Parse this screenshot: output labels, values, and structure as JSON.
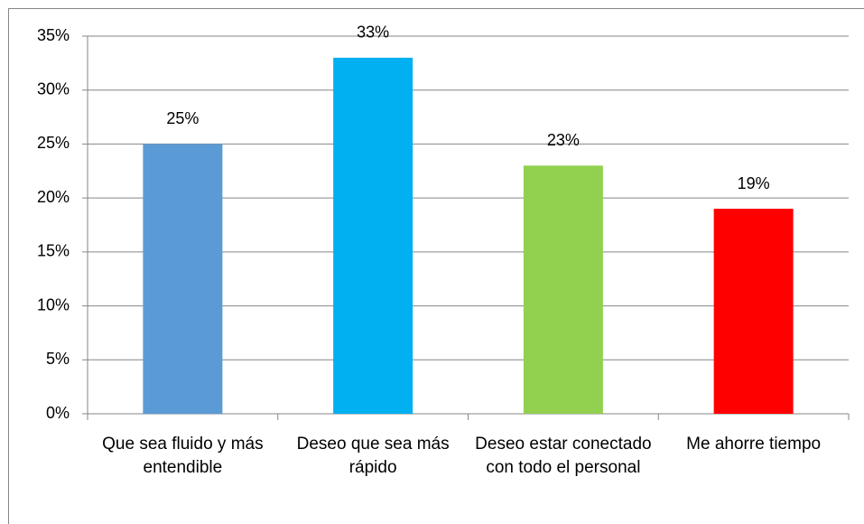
{
  "chart_data": {
    "type": "bar",
    "categories": [
      "Que sea fluido y más entendible",
      "Deseo que sea más rápido",
      "Deseo estar conectado con todo el personal",
      "Me ahorre tiempo"
    ],
    "values": [
      25,
      33,
      23,
      19
    ],
    "value_labels": [
      "25%",
      "33%",
      "23%",
      "19%"
    ],
    "colors": [
      "#5b9bd5",
      "#00b0f0",
      "#92d050",
      "#ff0000"
    ],
    "ylim": [
      0,
      35
    ],
    "yticks": [
      {
        "value": 0,
        "label": "0%"
      },
      {
        "value": 5,
        "label": "5%"
      },
      {
        "value": 10,
        "label": "10%"
      },
      {
        "value": 15,
        "label": "15%"
      },
      {
        "value": 20,
        "label": "20%"
      },
      {
        "value": 25,
        "label": "25%"
      },
      {
        "value": 30,
        "label": "30%"
      },
      {
        "value": 35,
        "label": "35%"
      }
    ],
    "grid": true
  }
}
